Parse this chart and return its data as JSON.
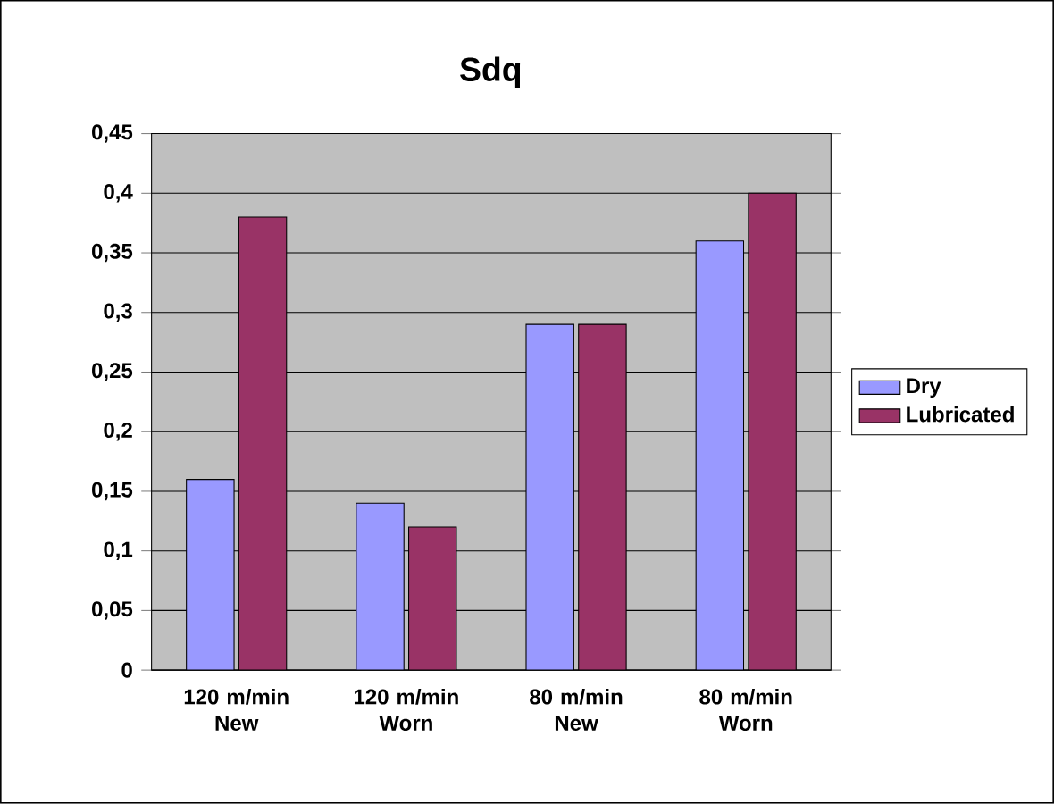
{
  "chart_data": {
    "type": "bar",
    "title": "Sdq",
    "categories": [
      "120 m/min New",
      "120 m/min Worn",
      "80 m/min New",
      "80 m/min Worn"
    ],
    "series": [
      {
        "name": "Dry",
        "color": "#9999ff",
        "values": [
          0.16,
          0.14,
          0.29,
          0.36
        ]
      },
      {
        "name": "Lubricated",
        "color": "#993366",
        "values": [
          0.38,
          0.12,
          0.29,
          0.4
        ]
      }
    ],
    "ylim": [
      0,
      0.45
    ],
    "yticks": [
      0,
      {
        "value": 0.05,
        "label": "0,05"
      },
      {
        "value": 0.1,
        "label": "0,1"
      },
      {
        "value": 0.15,
        "label": "0,15"
      },
      {
        "value": 0.2,
        "label": "0,2"
      },
      {
        "value": 0.25,
        "label": "0,25"
      },
      {
        "value": 0.3,
        "label": "0,3"
      },
      {
        "value": 0.35,
        "label": "0,35"
      },
      {
        "value": 0.4,
        "label": "0,4"
      },
      {
        "value": 0.45,
        "label": "0,45"
      }
    ],
    "grid": "y",
    "legend": "right"
  }
}
